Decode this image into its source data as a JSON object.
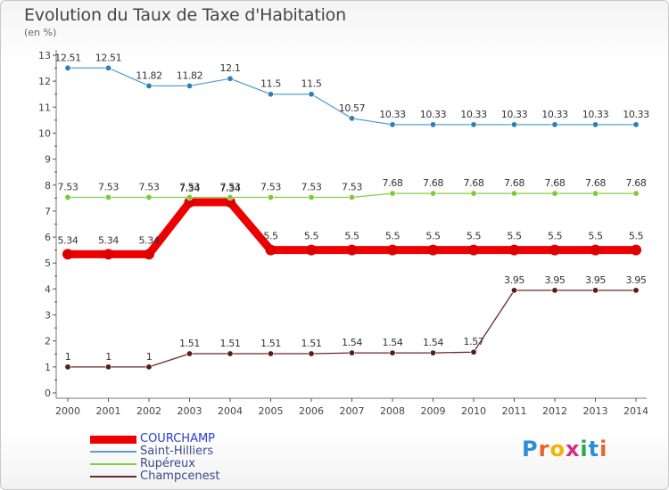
{
  "header": {
    "title": "Evolution du Taux de Taxe d'Habitation",
    "subtitle": "(en %)"
  },
  "logo": {
    "text": "Proxiti"
  },
  "colors": {
    "COURCHAMP": "#ee0000",
    "Saint-Hilliers": "#5ba0d0",
    "Rupéreux": "#88cc44",
    "Champcenest": "#6b2a2a",
    "marker_fill": {
      "COURCHAMP": "#dd0000",
      "Saint-Hilliers": "#2e7fb8",
      "Rupéreux": "#7acc33",
      "Champcenest": "#5a1a1a"
    }
  },
  "chart_data": {
    "type": "line",
    "title": "Evolution du Taux de Taxe d'Habitation",
    "ylabel": "(en %)",
    "x": [
      "2000",
      "2001",
      "2002",
      "2003",
      "2004",
      "2005",
      "2006",
      "2007",
      "2008",
      "2009",
      "2010",
      "2011",
      "2012",
      "2013",
      "2014"
    ],
    "ylim": [
      0,
      13
    ],
    "yticks": [
      "0",
      "1",
      "2",
      "3",
      "4",
      "5",
      "6",
      "7",
      "8",
      "9",
      "10",
      "11",
      "12",
      "13"
    ],
    "grid": false,
    "legend_position": "bottom-left",
    "series": [
      {
        "name": "COURCHAMP",
        "values": [
          5.34,
          5.34,
          5.34,
          7.34,
          7.34,
          5.5,
          5.5,
          5.5,
          5.5,
          5.5,
          5.5,
          5.5,
          5.5,
          5.5,
          5.5
        ],
        "labels": [
          "5.34",
          "5.34",
          "5.34",
          "7.34",
          "7.34",
          "5.5",
          "5.5",
          "5.5",
          "5.5",
          "5.5",
          "5.5",
          "5.5",
          "5.5",
          "5.5",
          "5.5"
        ]
      },
      {
        "name": "Saint-Hilliers",
        "values": [
          12.51,
          12.51,
          11.82,
          11.82,
          12.1,
          11.5,
          11.5,
          10.57,
          10.33,
          10.33,
          10.33,
          10.33,
          10.33,
          10.33,
          10.33
        ],
        "labels": [
          "12.51",
          "12.51",
          "11.82",
          "11.82",
          "12.1",
          "11.5",
          "11.5",
          "10.57",
          "10.33",
          "10.33",
          "10.33",
          "10.33",
          "10.33",
          "10.33",
          "10.33"
        ]
      },
      {
        "name": "Rupéreux",
        "values": [
          7.53,
          7.53,
          7.53,
          7.53,
          7.53,
          7.53,
          7.53,
          7.53,
          7.68,
          7.68,
          7.68,
          7.68,
          7.68,
          7.68,
          7.68
        ],
        "labels": [
          "7.53",
          "7.53",
          "7.53",
          "7.53",
          "7.53",
          "7.53",
          "7.53",
          "7.53",
          "7.68",
          "7.68",
          "7.68",
          "7.68",
          "7.68",
          "7.68",
          "7.68"
        ]
      },
      {
        "name": "Champcenest",
        "values": [
          1,
          1,
          1,
          1.51,
          1.51,
          1.51,
          1.51,
          1.54,
          1.54,
          1.54,
          1.57,
          3.95,
          3.95,
          3.95,
          3.95
        ],
        "labels": [
          "1",
          "1",
          "1",
          "1.51",
          "1.51",
          "1.51",
          "1.51",
          "1.54",
          "1.54",
          "1.54",
          "1.57",
          "3.95",
          "3.95",
          "3.95",
          "3.95"
        ]
      }
    ]
  }
}
